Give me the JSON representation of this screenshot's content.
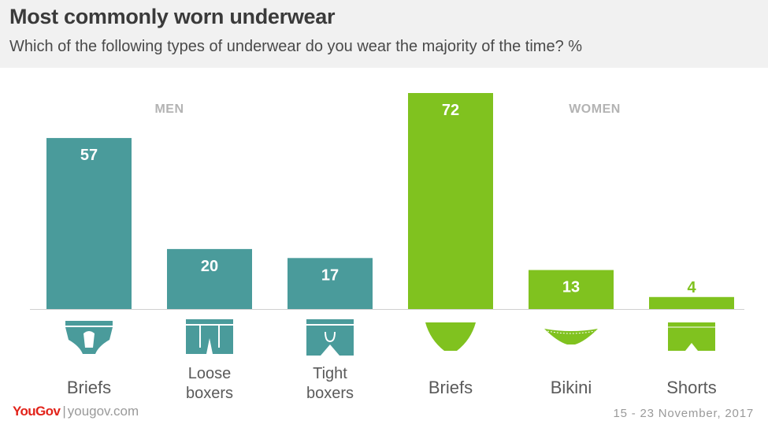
{
  "header": {
    "title": "Most commonly worn underwear",
    "subtitle": "Which of the following types of underwear do you wear the majority of the time?  %"
  },
  "footer": {
    "brand": "YouGov",
    "separator": "|",
    "url": "yougov.com",
    "date": "15 - 23 November, 2017"
  },
  "chart_data": {
    "type": "bar",
    "title": "Most commonly worn underwear",
    "subtitle": "Which of the following types of underwear do you wear the majority of the time?  %",
    "groups": [
      {
        "name": "MEN",
        "color": "#4a9b9b",
        "categories": [
          [
            "Briefs"
          ],
          [
            "Loose",
            "boxers"
          ],
          [
            "Tight",
            "boxers"
          ]
        ],
        "icons": [
          "mens-briefs-icon",
          "loose-boxers-icon",
          "tight-boxers-icon"
        ],
        "values": [
          57,
          20,
          17
        ]
      },
      {
        "name": "WOMEN",
        "color": "#80c21f",
        "categories": [
          [
            "Briefs"
          ],
          [
            "Bikini"
          ],
          [
            "Shorts"
          ]
        ],
        "icons": [
          "womens-briefs-icon",
          "bikini-icon",
          "shorts-icon"
        ],
        "values": [
          72,
          13,
          4
        ]
      }
    ],
    "ylim": [
      0,
      72
    ],
    "grid": false,
    "colors": {
      "men": "#4a9b9b",
      "women": "#80c21f",
      "axis": "#d0d0d0",
      "group_label": "#b3b3b3",
      "category_label": "#5a5a5a"
    }
  }
}
